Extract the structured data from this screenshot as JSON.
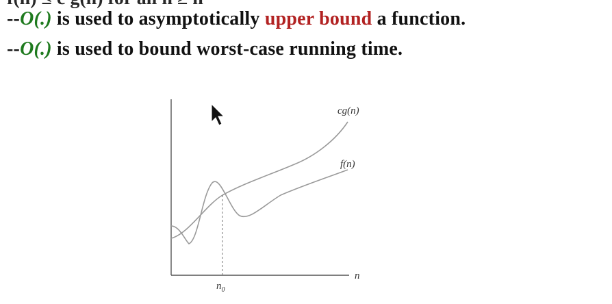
{
  "slide": {
    "top_clipped_text": "f(n) ≤ c g(n) for all n ≥ n",
    "line1": {
      "prefix": "--",
      "notation": "O(.)",
      "middle": " is used to asymptotically ",
      "highlight": "upper bound",
      "suffix": " a function."
    },
    "line2": {
      "prefix": "--",
      "notation": "O(.)",
      "rest": " is used to bound worst-case running time."
    }
  },
  "diagram": {
    "curve_labels": {
      "upper": "cg(n)",
      "lower": "f(n)"
    },
    "x_axis_label": "n",
    "marker_label": "n",
    "marker_subscript": "0"
  },
  "colors": {
    "notation": "#1e7a1e",
    "highlight": "#b22222",
    "text": "#111111",
    "curve": "#9a9a9a",
    "axis": "#555555"
  },
  "icons": {
    "cursor": "mouse-pointer-icon"
  }
}
